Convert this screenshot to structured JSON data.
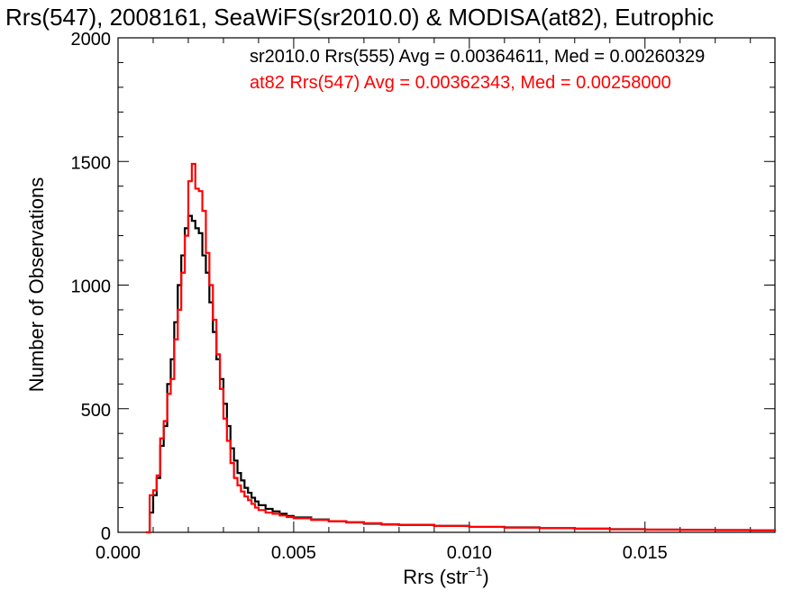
{
  "chart_data": {
    "type": "line",
    "title": "Rrs(547), 2008161, SeaWiFS(sr2010.0) & MODISA(at82), Eutrophic",
    "xlabel": "Rrs (str",
    "xlabel_sup": "−1",
    "xlabel_close": ")",
    "ylabel": "Number of Observations",
    "xlim": [
      0.0,
      0.0187
    ],
    "ylim": [
      0,
      2000
    ],
    "xticks": [
      0.0,
      0.005,
      0.01,
      0.015
    ],
    "xtick_labels": [
      "0.000",
      "0.005",
      "0.010",
      "0.015"
    ],
    "yticks": [
      0,
      500,
      1000,
      1500,
      2000
    ],
    "ytick_labels": [
      "0",
      "500",
      "1000",
      "1500",
      "2000"
    ],
    "grid": false,
    "series": [
      {
        "name": "sr2010.0 Rrs(555)",
        "label": "sr2010.0 Rrs(555) Avg = 0.00364611, Med = 0.00260329",
        "color": "#000000",
        "x": [
          0.0008,
          0.0009,
          0.001,
          0.0011,
          0.0012,
          0.0013,
          0.0014,
          0.0015,
          0.0016,
          0.0017,
          0.0018,
          0.0019,
          0.002,
          0.0021,
          0.0022,
          0.0023,
          0.0024,
          0.0025,
          0.0026,
          0.0027,
          0.0028,
          0.0029,
          0.003,
          0.0031,
          0.0032,
          0.0033,
          0.0034,
          0.0035,
          0.0036,
          0.0037,
          0.0038,
          0.0039,
          0.004,
          0.0042,
          0.0044,
          0.0046,
          0.0048,
          0.005,
          0.0055,
          0.006,
          0.0065,
          0.007,
          0.0075,
          0.008,
          0.009,
          0.01,
          0.011,
          0.012,
          0.013,
          0.014,
          0.015,
          0.016,
          0.017,
          0.018,
          0.0187
        ],
        "values": [
          0,
          80,
          150,
          220,
          350,
          430,
          600,
          700,
          850,
          1000,
          1120,
          1230,
          1280,
          1260,
          1230,
          1210,
          1120,
          1050,
          930,
          810,
          700,
          620,
          520,
          430,
          340,
          290,
          240,
          210,
          180,
          160,
          140,
          125,
          110,
          95,
          85,
          75,
          66,
          60,
          52,
          45,
          40,
          35,
          32,
          30,
          26,
          22,
          20,
          17,
          15,
          13,
          11,
          10,
          9,
          8,
          7
        ]
      },
      {
        "name": "at82 Rrs(547)",
        "label": "at82 Rrs(547) Avg = 0.00362343, Med = 0.00258000",
        "color": "#ff0000",
        "x": [
          0.0008,
          0.0009,
          0.001,
          0.0011,
          0.0012,
          0.0013,
          0.0014,
          0.0015,
          0.0016,
          0.0017,
          0.0018,
          0.0019,
          0.002,
          0.0021,
          0.0022,
          0.0023,
          0.0024,
          0.0025,
          0.0026,
          0.0027,
          0.0028,
          0.0029,
          0.003,
          0.0031,
          0.0032,
          0.0033,
          0.0034,
          0.0035,
          0.0036,
          0.0037,
          0.0038,
          0.0039,
          0.004,
          0.0042,
          0.0044,
          0.0046,
          0.0048,
          0.005,
          0.0055,
          0.006,
          0.0065,
          0.007,
          0.0075,
          0.008,
          0.009,
          0.01,
          0.011,
          0.012,
          0.013,
          0.014,
          0.015,
          0.016,
          0.017,
          0.018,
          0.0187
        ],
        "values": [
          0,
          150,
          170,
          230,
          380,
          450,
          560,
          620,
          780,
          900,
          1050,
          1200,
          1420,
          1490,
          1390,
          1380,
          1300,
          1130,
          1000,
          860,
          720,
          580,
          460,
          370,
          280,
          220,
          190,
          165,
          145,
          130,
          115,
          100,
          90,
          80,
          75,
          68,
          62,
          57,
          50,
          45,
          41,
          37,
          33,
          30,
          26,
          22,
          19,
          17,
          14,
          12,
          11,
          10,
          9,
          8,
          7
        ]
      }
    ]
  }
}
